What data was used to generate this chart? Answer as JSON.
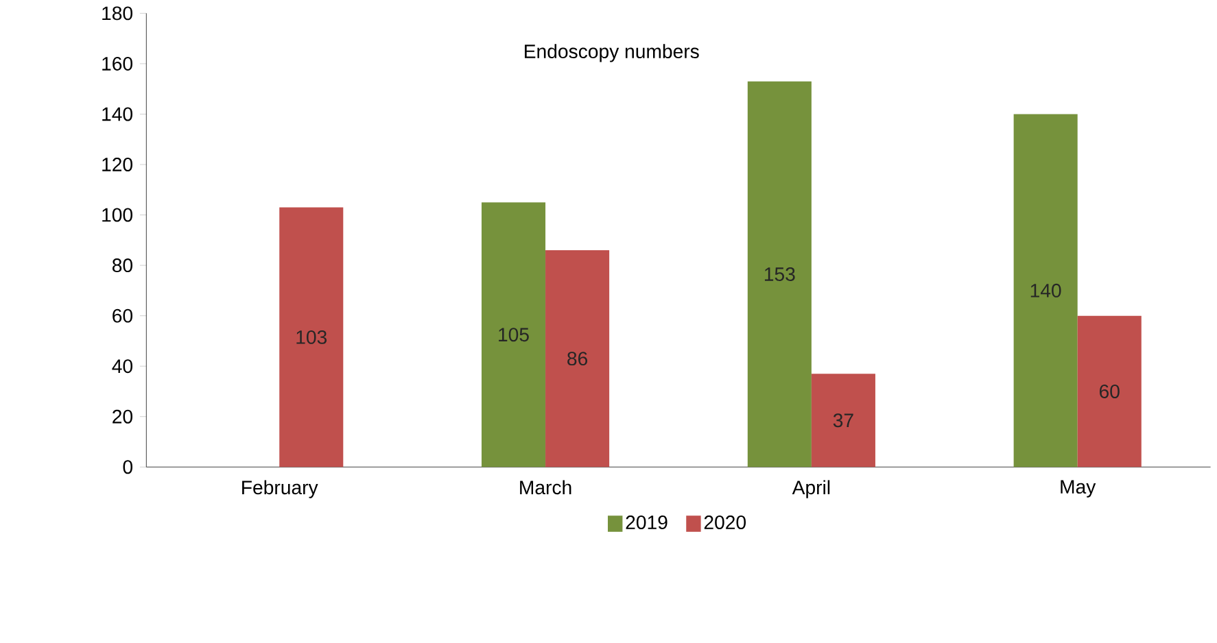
{
  "chart_data": {
    "type": "bar",
    "title": "Endoscopy numbers",
    "categories": [
      "February",
      "March",
      "April",
      "May"
    ],
    "series": [
      {
        "name": "2019",
        "color": "#76923c",
        "values": [
          null,
          105,
          153,
          140
        ]
      },
      {
        "name": "2020",
        "color": "#c0504d",
        "values": [
          103,
          86,
          37,
          60
        ]
      }
    ],
    "ylim": [
      0,
      180
    ],
    "yticks": [
      0,
      20,
      40,
      60,
      80,
      100,
      120,
      140,
      160,
      180
    ],
    "data_labels": true,
    "grid": false,
    "legend": "bottom"
  }
}
